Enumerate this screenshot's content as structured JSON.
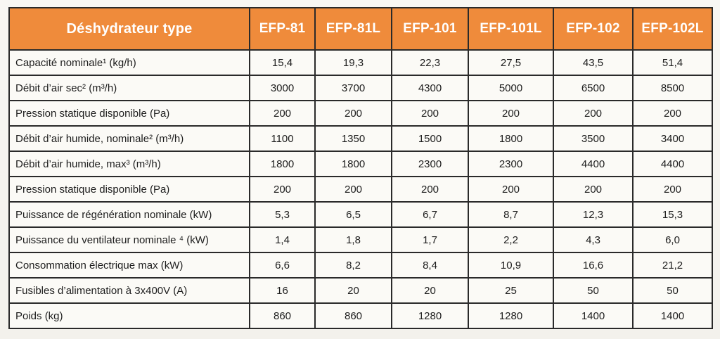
{
  "table": {
    "header": [
      "Déshydrateur type",
      "EFP-81",
      "EFP-81L",
      "EFP-101",
      "EFP-101L",
      "EFP-102",
      "EFP-102L"
    ],
    "rows": [
      {
        "label": "Capacité nominale¹ (kg/h)",
        "values": [
          "15,4",
          "19,3",
          "22,3",
          "27,5",
          "43,5",
          "51,4"
        ]
      },
      {
        "label": "Débit d’air sec² (m³/h)",
        "values": [
          "3000",
          "3700",
          "4300",
          "5000",
          "6500",
          "8500"
        ]
      },
      {
        "label": "Pression statique disponible (Pa)",
        "values": [
          "200",
          "200",
          "200",
          "200",
          "200",
          "200"
        ]
      },
      {
        "label": "Débit d’air humide, nominale² (m³/h)",
        "values": [
          "1100",
          "1350",
          "1500",
          "1800",
          "3500",
          "3400"
        ]
      },
      {
        "label": "Débit d’air humide, max³ (m³/h)",
        "values": [
          "1800",
          "1800",
          "2300",
          "2300",
          "4400",
          "4400"
        ]
      },
      {
        "label": "Pression statique disponible (Pa)",
        "values": [
          "200",
          "200",
          "200",
          "200",
          "200",
          "200"
        ]
      },
      {
        "label": "Puissance de régénération nominale (kW)",
        "values": [
          "5,3",
          "6,5",
          "6,7",
          "8,7",
          "12,3",
          "15,3"
        ]
      },
      {
        "label": "Puissance du ventilateur nominale ⁴ (kW)",
        "values": [
          "1,4",
          "1,8",
          "1,7",
          "2,2",
          "4,3",
          "6,0"
        ]
      },
      {
        "label": "Consommation électrique max (kW)",
        "values": [
          "6,6",
          "8,2",
          "8,4",
          "10,9",
          "16,6",
          "21,2"
        ]
      },
      {
        "label": "Fusibles d’alimentation à 3x400V (A)",
        "values": [
          "16",
          "20",
          "20",
          "25",
          "50",
          "50"
        ]
      },
      {
        "label": "Poids (kg)",
        "values": [
          "860",
          "860",
          "1280",
          "1280",
          "1400",
          "1400"
        ]
      }
    ]
  },
  "colors": {
    "header_bg": "#ef8b3b",
    "header_text": "#ffffff",
    "border": "#2a2a2a"
  }
}
